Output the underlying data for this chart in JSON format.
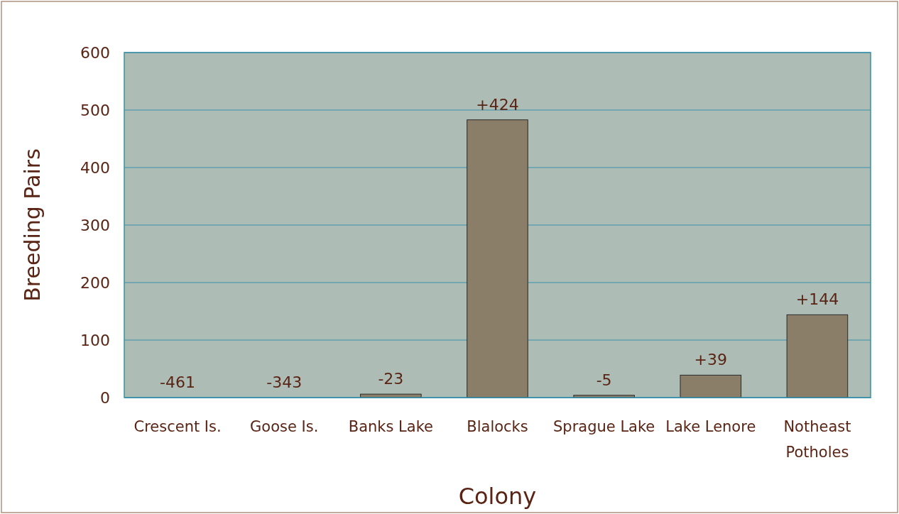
{
  "chart_data": {
    "type": "bar",
    "xlabel": "Colony",
    "ylabel": "Breeding Pairs",
    "categories": [
      "Crescent Is.",
      "Goose Is.",
      "Banks Lake",
      "Blalocks",
      "Sprague Lake",
      "Lake Lenore",
      "Notheast Potholes"
    ],
    "values": [
      0,
      0,
      6,
      483,
      4,
      39,
      144
    ],
    "annotations": [
      {
        "text": "-461",
        "x": "Crescent Is.",
        "y": 0
      },
      {
        "text": "-343",
        "x": "Goose Is.",
        "y": 0
      },
      {
        "text": "-23",
        "x": "Banks Lake",
        "y": 6
      },
      {
        "text": "+424",
        "x": "Blalocks",
        "y": 483
      },
      {
        "text": "-5",
        "x": "Sprague Lake",
        "y": 4
      },
      {
        "text": "+39",
        "x": "Lake Lenore",
        "y": 39
      },
      {
        "text": "+144",
        "x": "Notheast Potholes",
        "y": 144
      }
    ],
    "color": "#8b7e68",
    "ylim": [
      0,
      600
    ],
    "yticks": [
      0,
      100,
      200,
      300,
      400,
      500,
      600
    ],
    "grid": "y"
  }
}
